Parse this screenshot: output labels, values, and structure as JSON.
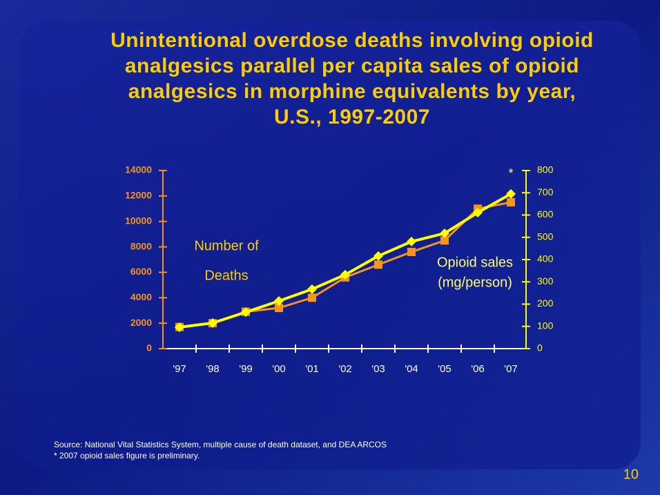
{
  "chart_data": {
    "type": "line",
    "title": [
      "Unintentional overdose deaths involving opioid",
      "analgesics parallel per capita sales of opioid",
      "analgesics in morphine equivalents by year,",
      "U.S., 1997-2007"
    ],
    "categories": [
      "'97",
      "'98",
      "'99",
      "'00",
      "'01",
      "'02",
      "'03",
      "'04",
      "'05",
      "'06",
      "'07"
    ],
    "series": [
      {
        "name": "Number of Deaths",
        "color": "#f7941d",
        "marker": "square",
        "axis": "y",
        "values": [
          1700,
          2000,
          2900,
          3200,
          4000,
          5600,
          6600,
          7600,
          8500,
          11000,
          11500
        ]
      },
      {
        "name": "Opioid sales (mg/person)",
        "color": "#ffff00",
        "marker": "diamond",
        "axis": "y2",
        "values": [
          96,
          115,
          164,
          214,
          267,
          332,
          416,
          481,
          518,
          611,
          695
        ]
      }
    ],
    "ylabel": [
      "Number of",
      "Deaths"
    ],
    "y2label": [
      "Opioid sales",
      "(mg/person)"
    ],
    "ylim": [
      0,
      14000
    ],
    "yticks": [
      0,
      2000,
      4000,
      6000,
      8000,
      10000,
      12000,
      14000
    ],
    "y2lim": [
      0,
      800
    ],
    "y2ticks": [
      0,
      100,
      200,
      300,
      400,
      500,
      600,
      700,
      800
    ],
    "annotation": "*",
    "source": [
      "Source: National Vital Statistics System, multiple cause of death dataset, and DEA ARCOS",
      "* 2007 opioid sales figure is preliminary."
    ],
    "page_number": "10"
  }
}
